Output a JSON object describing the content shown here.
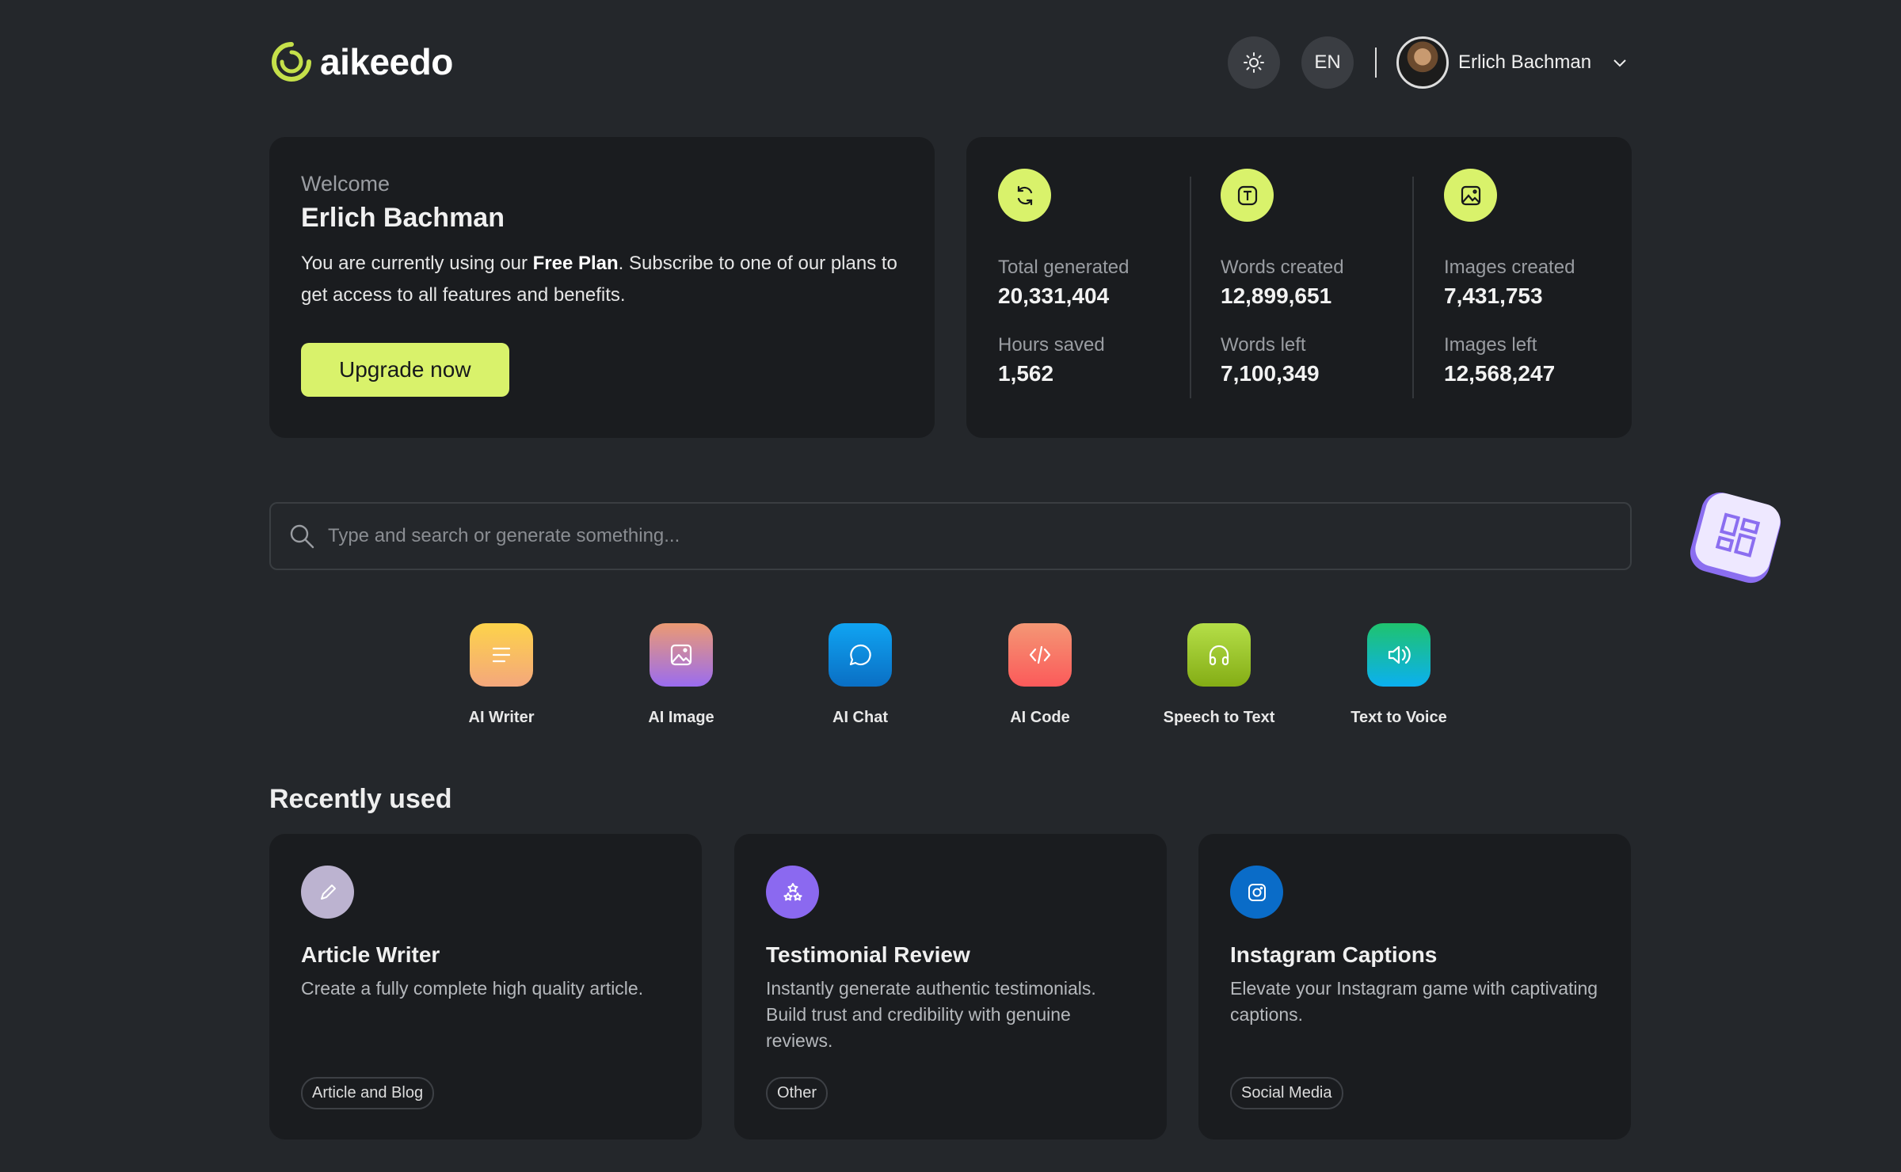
{
  "brand": {
    "name": "aikeedo",
    "accent": "#d9f26b"
  },
  "header": {
    "theme_icon": "sun-icon",
    "language": "EN",
    "user_name": "Erlich Bachman"
  },
  "welcome": {
    "label": "Welcome",
    "name": "Erlich Bachman",
    "text_before": "You are currently using our ",
    "plan": "Free Plan",
    "text_after": ". Subscribe to one of our plans to get access to all features and benefits.",
    "button": "Upgrade now"
  },
  "stats": [
    {
      "icon": "refresh-icon",
      "items": [
        {
          "label": "Total generated",
          "value": "20,331,404"
        },
        {
          "label": "Hours saved",
          "value": "1,562"
        }
      ]
    },
    {
      "icon": "text-icon",
      "items": [
        {
          "label": "Words created",
          "value": "12,899,651"
        },
        {
          "label": "Words left",
          "value": "7,100,349"
        }
      ]
    },
    {
      "icon": "image-icon",
      "items": [
        {
          "label": "Images created",
          "value": "7,431,753"
        },
        {
          "label": "Images left",
          "value": "12,568,247"
        }
      ]
    }
  ],
  "search": {
    "placeholder": "Type and search or generate something..."
  },
  "apps": [
    {
      "label": "AI Writer",
      "icon": "lines-icon",
      "colors": [
        "#fdd34a",
        "#f4a77c"
      ]
    },
    {
      "label": "AI Image",
      "icon": "image-icon",
      "colors": [
        "#ec9a72",
        "#9a6cf0"
      ]
    },
    {
      "label": "AI Chat",
      "icon": "chat-icon",
      "colors": [
        "#10a4f2",
        "#0a6fc4"
      ]
    },
    {
      "label": "AI Code",
      "icon": "code-icon",
      "colors": [
        "#f49775",
        "#fb5a5a"
      ]
    },
    {
      "label": "Speech to Text",
      "icon": "headphones-icon",
      "colors": [
        "#b5df48",
        "#84ad15"
      ]
    },
    {
      "label": "Text to Voice",
      "icon": "speaker-icon",
      "colors": [
        "#1fc36e",
        "#0bb0f0"
      ]
    }
  ],
  "recent": {
    "title": "Recently used",
    "items": [
      {
        "title": "Article Writer",
        "desc": "Create a fully complete high quality article.",
        "tag": "Article and Blog",
        "icon": "pencil-icon",
        "color": "#bcb3d0"
      },
      {
        "title": "Testimonial Review",
        "desc": "Instantly generate authentic testimonials. Build trust and credibility with genuine reviews.",
        "tag": "Other",
        "icon": "stars-icon",
        "color": "#8b69f0"
      },
      {
        "title": "Instagram Captions",
        "desc": "Elevate your Instagram game with captivating captions.",
        "tag": "Social Media",
        "icon": "instagram-icon",
        "color": "#0a6cc8"
      }
    ]
  }
}
